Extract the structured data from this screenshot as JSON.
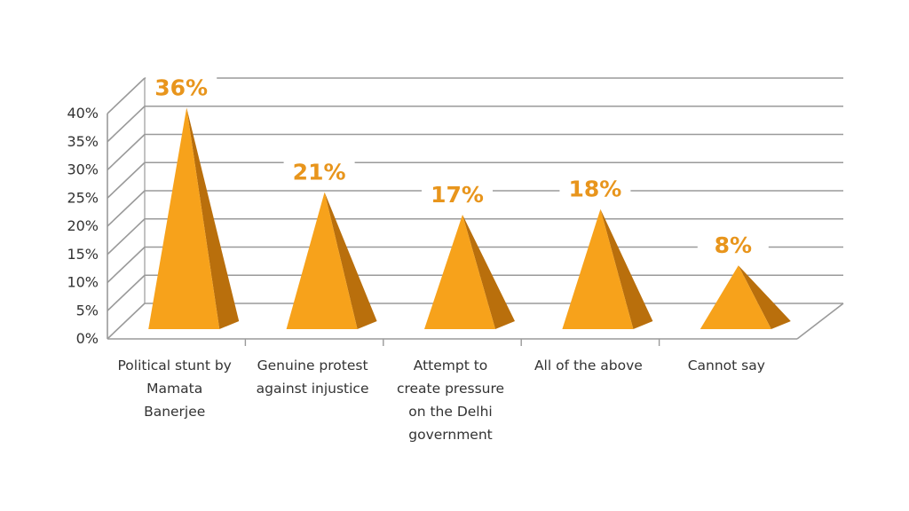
{
  "chart_data": {
    "type": "bar",
    "bar_shape": "pyramid-3d",
    "categories": [
      [
        "Political stunt by",
        "Mamata",
        "Banerjee"
      ],
      [
        "Genuine protest",
        "against injustice"
      ],
      [
        "Attempt to",
        "create pressure",
        "on the Delhi",
        "government"
      ],
      [
        "All of the above"
      ],
      [
        "Cannot say"
      ]
    ],
    "values": [
      36,
      21,
      17,
      18,
      8
    ],
    "data_labels": [
      "36%",
      "21%",
      "17%",
      "18%",
      "8%"
    ],
    "ylim": [
      0,
      40
    ],
    "yticks": [
      "0%",
      "5%",
      "10%",
      "15%",
      "20%",
      "25%",
      "30%",
      "35%",
      "40%"
    ],
    "grid": true,
    "legend": "none",
    "title": "",
    "xlabel": "",
    "ylabel": "",
    "colors": {
      "pyramid_front": "#F7A21B",
      "pyramid_side": "#B96F0C",
      "label": "#E8951C",
      "grid": "#9a9a9a",
      "text": "#333333"
    }
  }
}
